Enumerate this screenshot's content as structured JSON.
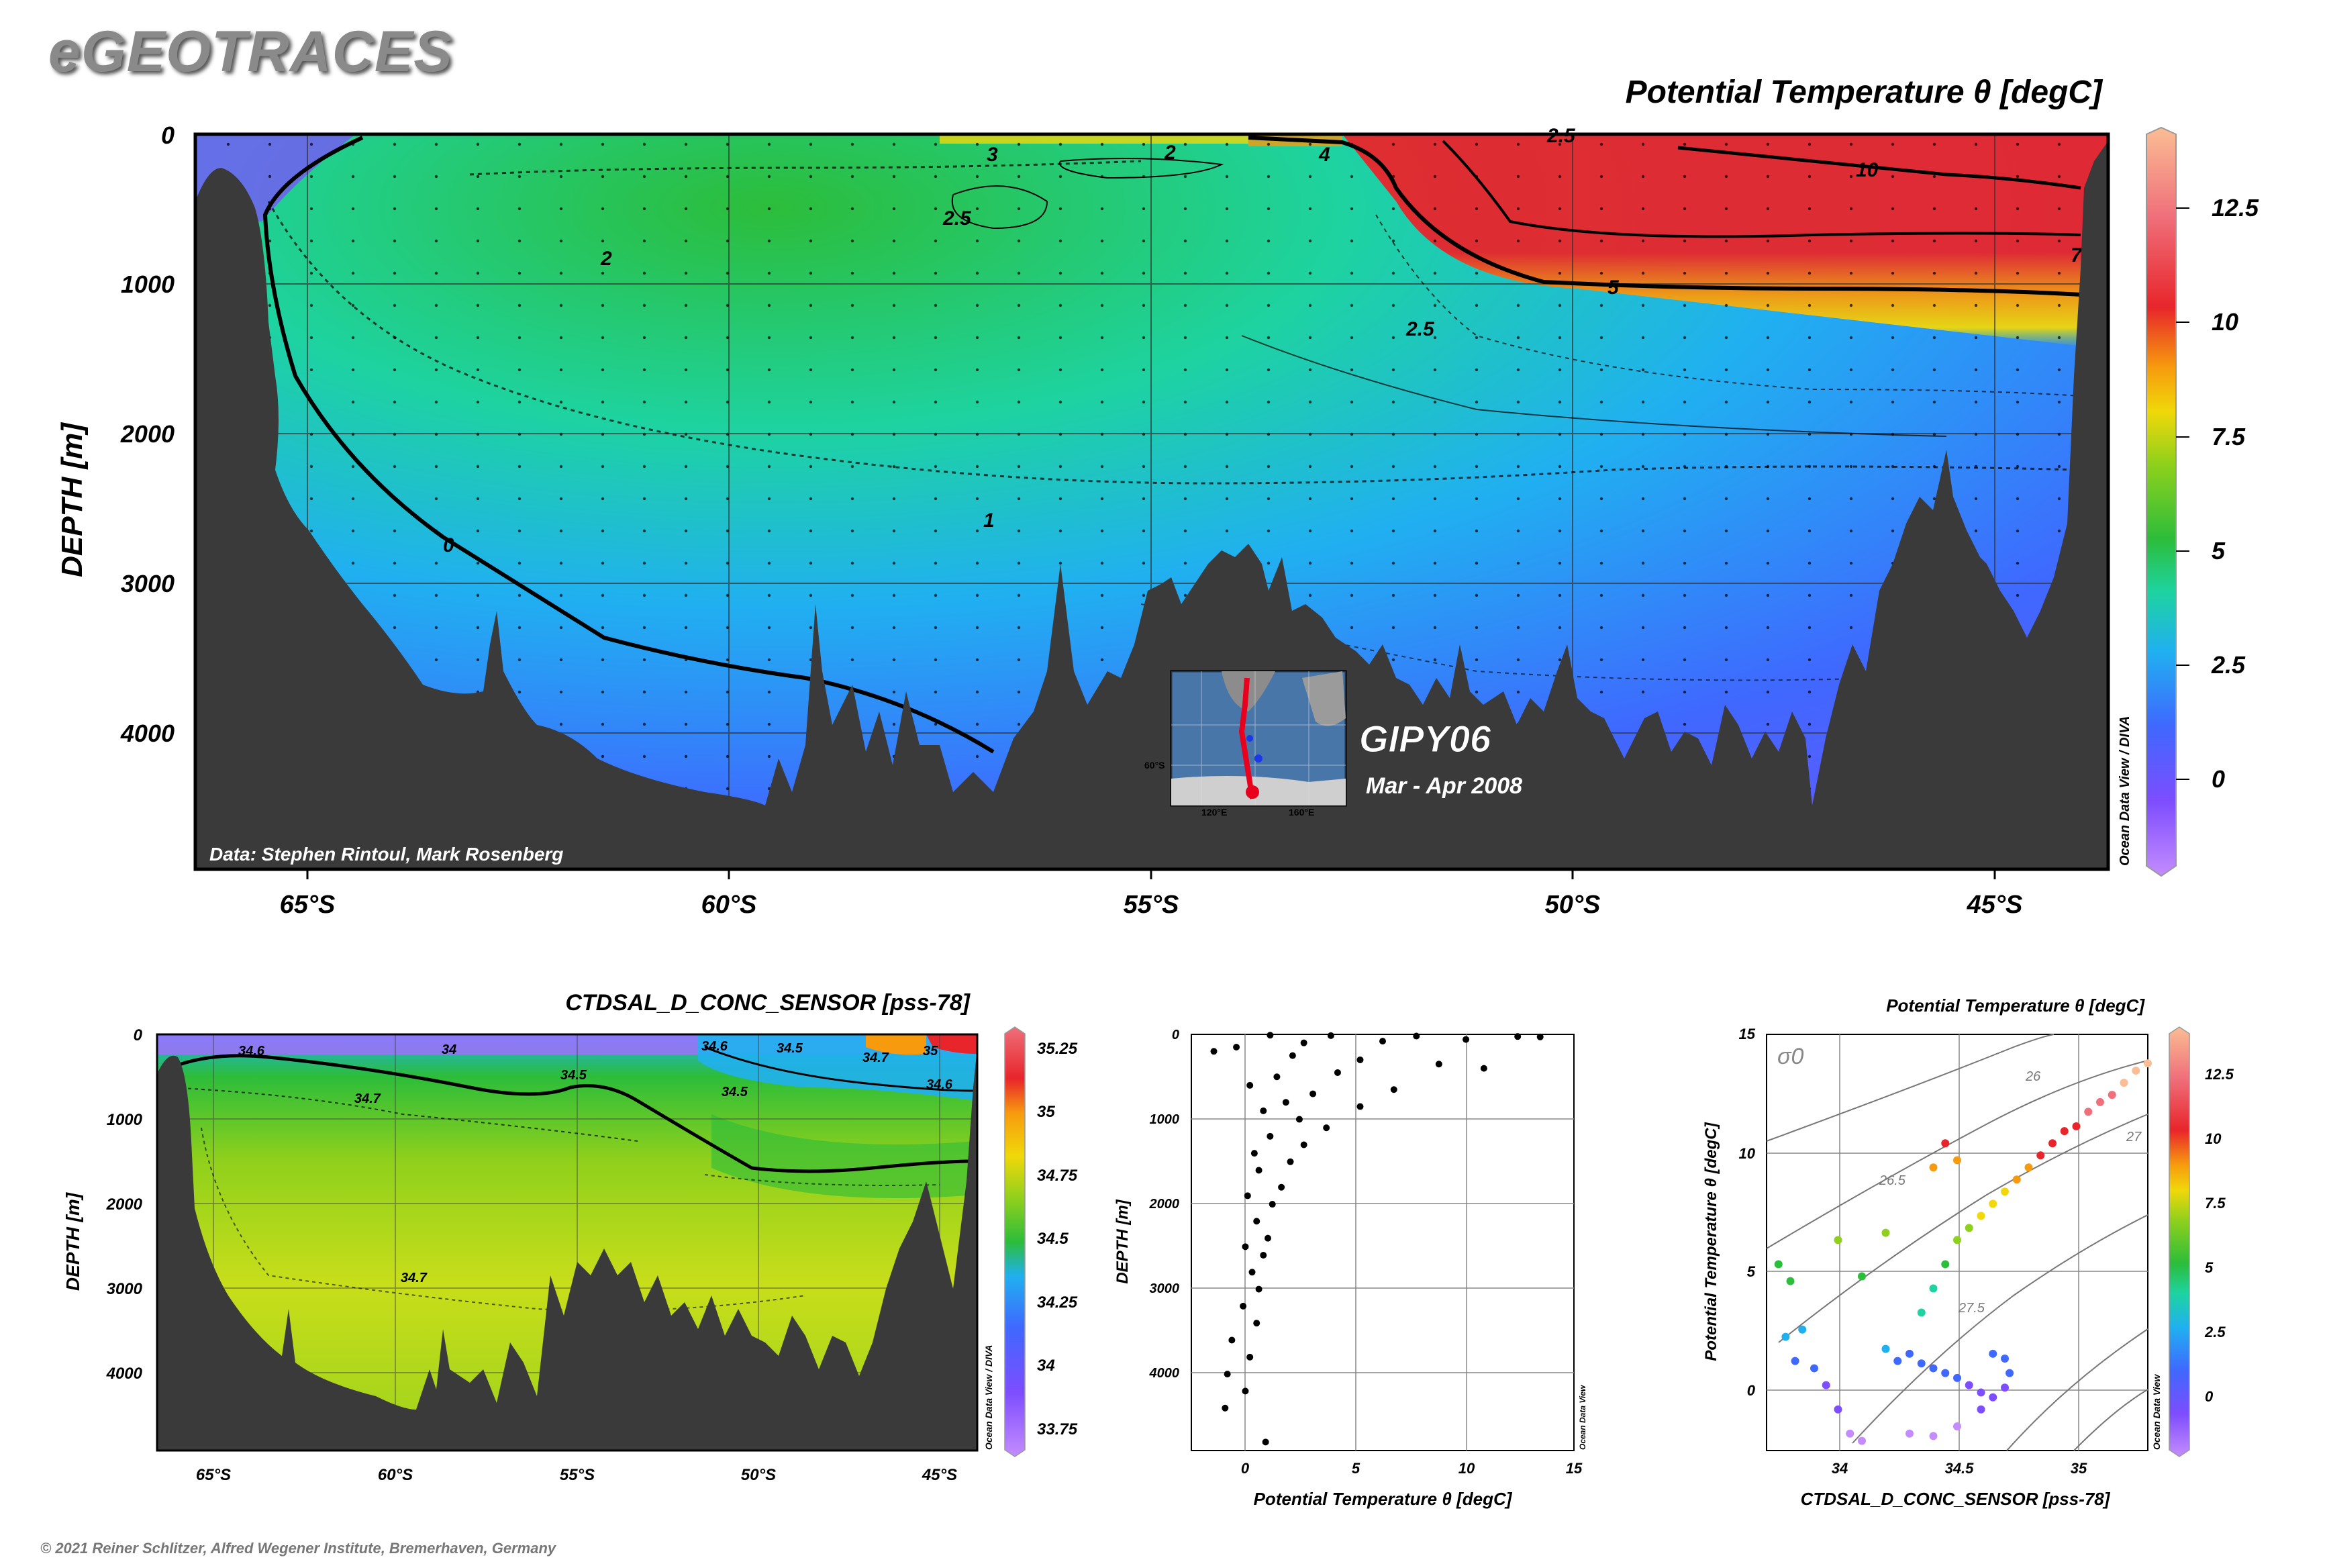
{
  "brand": "eGEOTRACES",
  "copyright": "© 2021 Reiner Schlitzer, Alfred Wegener Institute, Bremerhaven, Germany",
  "colors": {
    "terrain": "#3a3a3a",
    "colormap": [
      "#c48cff",
      "#7d4dff",
      "#3f68ff",
      "#20b0f0",
      "#1ed3a0",
      "#2cbd3a",
      "#8fd01c",
      "#f0d80a",
      "#f79a0e",
      "#e8252b",
      "#ef6f7a",
      "#fbbd94"
    ]
  },
  "main_section": {
    "title": "Potential Temperature θ [degC]",
    "ylabel": "DEPTH [m]",
    "data_credit": "Data: Stephen Rintoul, Mark Rosenberg",
    "cruise": "GIPY06",
    "period": "Mar - Apr 2008",
    "watermark": "Ocean Data View / DIVA",
    "inset_labels": [
      "120°E",
      "160°E",
      "60°S"
    ],
    "colorbar_ticks": [
      "12.5",
      "10",
      "7.5",
      "5",
      "2.5",
      "0"
    ],
    "contour_labels": [
      "0",
      "1",
      "2",
      "2.5",
      "3",
      "2",
      "2.5",
      "4",
      "5",
      "7",
      "10",
      "2.5"
    ]
  },
  "salinity_section": {
    "title": "CTDSAL_D_CONC_SENSOR [pss-78]",
    "ylabel": "DEPTH [m]",
    "watermark": "Ocean Data View / DIVA",
    "colorbar_ticks": [
      "35.25",
      "35",
      "34.75",
      "34.5",
      "34.25",
      "34",
      "33.75"
    ],
    "contour_labels": [
      "34.6",
      "34",
      "34.5",
      "34.7",
      "34.7",
      "34.6",
      "34.5",
      "34.7",
      "35",
      "34.6",
      "34.5"
    ]
  },
  "profile_plot": {
    "xlabel": "Potential Temperature θ [degC]",
    "ylabel": "DEPTH [m]",
    "watermark": "Ocean Data View"
  },
  "ts_plot": {
    "title": "Potential Temperature θ [degC]",
    "xlabel": "CTDSAL_D_CONC_SENSOR [pss-78]",
    "ylabel": "Potential Temperature θ [degC]",
    "sigma_label": "σ0",
    "isopycnal_labels": [
      "26",
      "26.5",
      "27",
      "27.5"
    ],
    "watermark": "Ocean Data View",
    "colorbar_ticks": [
      "12.5",
      "10",
      "7.5",
      "5",
      "2.5",
      "0"
    ]
  },
  "chart_data": [
    {
      "type": "heatmap",
      "title": "Potential Temperature θ [degC]",
      "xlabel": "",
      "ylabel": "DEPTH [m]",
      "x_ticks": [
        "65°S",
        "60°S",
        "55°S",
        "50°S",
        "45°S"
      ],
      "x_tick_values": [
        -65,
        -60,
        -55,
        -50,
        -45
      ],
      "y_ticks": [
        "0",
        "1000",
        "2000",
        "3000",
        "4000"
      ],
      "y_tick_values": [
        0,
        1000,
        2000,
        3000,
        4000
      ],
      "xlim": [
        -66.3,
        -43.7
      ],
      "ylim": [
        4900,
        0
      ],
      "colorbar": {
        "range": [
          -2,
          14
        ],
        "ticks": [
          0,
          2.5,
          5,
          7.5,
          10,
          12.5
        ]
      },
      "grid": true
    },
    {
      "type": "heatmap",
      "title": "CTDSAL_D_CONC_SENSOR [pss-78]",
      "ylabel": "DEPTH [m]",
      "x_ticks": [
        "65°S",
        "60°S",
        "55°S",
        "50°S",
        "45°S"
      ],
      "x_tick_values": [
        -65,
        -60,
        -55,
        -50,
        -45
      ],
      "y_ticks": [
        "0",
        "1000",
        "2000",
        "3000",
        "4000"
      ],
      "y_tick_values": [
        0,
        1000,
        2000,
        3000,
        4000
      ],
      "xlim": [
        -66.3,
        -43.7
      ],
      "ylim": [
        4900,
        0
      ],
      "colorbar": {
        "range": [
          33.7,
          35.3
        ],
        "ticks": [
          33.75,
          34,
          34.25,
          34.5,
          34.75,
          35,
          35.25
        ]
      },
      "grid": true
    },
    {
      "type": "scatter",
      "xlabel": "Potential Temperature θ [degC]",
      "ylabel": "DEPTH [m]",
      "x_ticks": [
        "0",
        "5",
        "10",
        "15"
      ],
      "x_tick_values": [
        0,
        5,
        10,
        15
      ],
      "y_ticks": [
        "0",
        "1000",
        "2000",
        "3000",
        "4000"
      ],
      "y_tick_values": [
        0,
        1000,
        2000,
        3000,
        4000
      ],
      "xlim": [
        -2,
        15
      ],
      "ylim": [
        4900,
        0
      ],
      "points": [
        [
          1.5,
          10
        ],
        [
          4.2,
          15
        ],
        [
          8.0,
          20
        ],
        [
          12.5,
          25
        ],
        [
          13.5,
          30
        ],
        [
          10.2,
          60
        ],
        [
          6.5,
          80
        ],
        [
          3.0,
          100
        ],
        [
          0.0,
          150
        ],
        [
          -1.0,
          200
        ],
        [
          2.5,
          250
        ],
        [
          5.5,
          300
        ],
        [
          9.0,
          350
        ],
        [
          11.0,
          400
        ],
        [
          4.5,
          450
        ],
        [
          1.8,
          500
        ],
        [
          0.6,
          600
        ],
        [
          7.0,
          650
        ],
        [
          3.4,
          700
        ],
        [
          2.2,
          800
        ],
        [
          5.5,
          850
        ],
        [
          1.2,
          900
        ],
        [
          2.8,
          1000
        ],
        [
          4.0,
          1100
        ],
        [
          1.5,
          1200
        ],
        [
          3.0,
          1300
        ],
        [
          0.8,
          1400
        ],
        [
          2.4,
          1500
        ],
        [
          1.0,
          1600
        ],
        [
          2.0,
          1800
        ],
        [
          0.5,
          1900
        ],
        [
          1.6,
          2000
        ],
        [
          0.9,
          2200
        ],
        [
          1.4,
          2400
        ],
        [
          0.4,
          2500
        ],
        [
          1.2,
          2600
        ],
        [
          0.7,
          2800
        ],
        [
          1.0,
          3000
        ],
        [
          0.3,
          3200
        ],
        [
          0.9,
          3400
        ],
        [
          -0.2,
          3600
        ],
        [
          0.6,
          3800
        ],
        [
          -0.4,
          4000
        ],
        [
          0.4,
          4200
        ],
        [
          -0.5,
          4400
        ],
        [
          1.3,
          4800
        ]
      ]
    },
    {
      "type": "scatter",
      "xlabel": "CTDSAL_D_CONC_SENSOR [pss-78]",
      "ylabel": "Potential Temperature θ [degC]",
      "x_ticks": [
        "34",
        "34.5",
        "35"
      ],
      "x_tick_values": [
        34,
        34.5,
        35
      ],
      "y_ticks": [
        "0",
        "5",
        "10",
        "15"
      ],
      "y_tick_values": [
        0,
        5,
        10,
        15
      ],
      "xlim": [
        33.7,
        35.3
      ],
      "ylim": [
        -2.2,
        15
      ],
      "isopycnals": [
        26,
        26.5,
        27,
        27.5
      ],
      "colorbar": {
        "range": [
          -2,
          14
        ],
        "ticks": [
          0,
          2.5,
          5,
          7.5,
          10,
          12.5
        ]
      },
      "points": [
        [
          33.75,
          5.5
        ],
        [
          33.8,
          4.8
        ],
        [
          33.78,
          2.5
        ],
        [
          33.85,
          2.8
        ],
        [
          33.82,
          1.5
        ],
        [
          33.9,
          1.2
        ],
        [
          33.95,
          0.5
        ],
        [
          34.0,
          -0.5
        ],
        [
          34.05,
          -1.5
        ],
        [
          34.1,
          -1.8
        ],
        [
          34.2,
          2.0
        ],
        [
          34.25,
          1.5
        ],
        [
          34.3,
          1.8
        ],
        [
          34.35,
          1.4
        ],
        [
          34.4,
          1.2
        ],
        [
          34.45,
          1.0
        ],
        [
          34.5,
          0.8
        ],
        [
          34.55,
          0.5
        ],
        [
          34.6,
          0.2
        ],
        [
          34.65,
          0.0
        ],
        [
          34.7,
          0.4
        ],
        [
          34.72,
          1.0
        ],
        [
          34.7,
          1.6
        ],
        [
          34.65,
          1.8
        ],
        [
          34.3,
          -1.5
        ],
        [
          34.4,
          -1.6
        ],
        [
          34.5,
          -1.2
        ],
        [
          34.6,
          -0.5
        ],
        [
          34.35,
          3.5
        ],
        [
          34.4,
          4.5
        ],
        [
          34.45,
          5.5
        ],
        [
          34.5,
          6.5
        ],
        [
          34.55,
          7.0
        ],
        [
          34.6,
          7.5
        ],
        [
          34.65,
          8.0
        ],
        [
          34.7,
          8.5
        ],
        [
          34.75,
          9.0
        ],
        [
          34.8,
          9.5
        ],
        [
          34.85,
          10.0
        ],
        [
          34.9,
          10.5
        ],
        [
          34.95,
          11.0
        ],
        [
          35.0,
          11.2
        ],
        [
          35.05,
          11.8
        ],
        [
          35.1,
          12.2
        ],
        [
          35.15,
          12.5
        ],
        [
          35.2,
          13.0
        ],
        [
          35.25,
          13.5
        ],
        [
          35.3,
          13.8
        ],
        [
          34.2,
          6.8
        ],
        [
          34.0,
          6.5
        ],
        [
          34.1,
          5.0
        ],
        [
          34.4,
          9.5
        ],
        [
          34.45,
          10.5
        ],
        [
          34.5,
          9.8
        ]
      ]
    }
  ]
}
